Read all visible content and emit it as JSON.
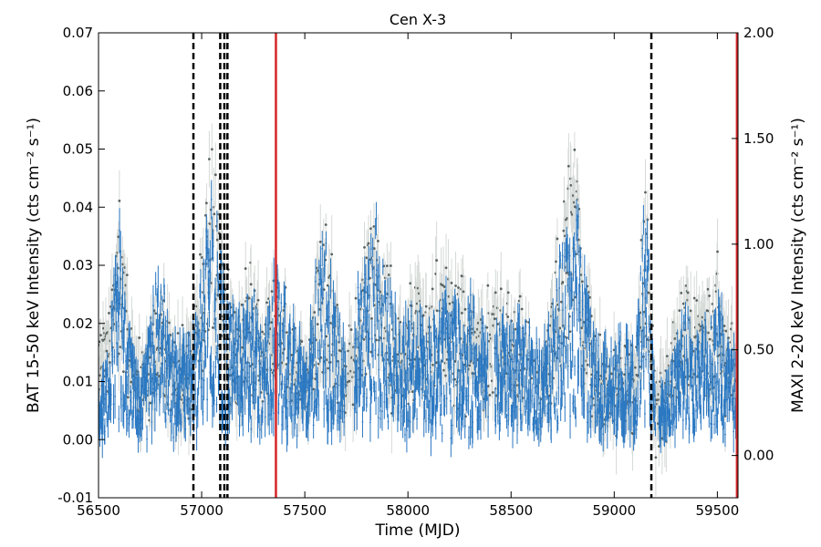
{
  "chart_data": {
    "type": "scatter",
    "title": "Cen X-3",
    "xlabel": "Time (MJD)",
    "ylabel_left": "BAT 15-50 keV Intensity (cts cm⁻² s⁻¹)",
    "ylabel_right": "MAXI 2-20 keV Intensity (cts cm⁻² s⁻¹)",
    "xlim": [
      56500,
      59600
    ],
    "ylim_left": [
      -0.01,
      0.07
    ],
    "ylim_right": [
      -0.2,
      2.0
    ],
    "x_ticks": [
      "56500",
      "57000",
      "57500",
      "58000",
      "58500",
      "59000",
      "59500"
    ],
    "y_ticks_left": [
      "-0.01",
      "0.00",
      "0.01",
      "0.02",
      "0.03",
      "0.04",
      "0.05",
      "0.06",
      "0.07"
    ],
    "y_ticks_right": [
      "0.00",
      "0.50",
      "1.00",
      "1.50",
      "2.00"
    ],
    "grid": false,
    "colors": {
      "bat": "#2b78c2",
      "maxi_point": "#5a6462",
      "maxi_error": "#d4d9d6",
      "dashed_line": "#000000",
      "solid_line": "#d62728"
    },
    "vertical_lines_dashed": [
      56960,
      57090,
      57110,
      57125,
      59180
    ],
    "vertical_lines_solid": [
      57360,
      59595
    ],
    "series": [
      {
        "instrument": "BAT",
        "axis": "left",
        "x_start": 56500,
        "x_end": 59600,
        "envelope": [
          [
            56500,
            0.004
          ],
          [
            56550,
            0.01
          ],
          [
            56600,
            0.025
          ],
          [
            56650,
            0.012
          ],
          [
            56700,
            0.006
          ],
          [
            56750,
            0.015
          ],
          [
            56800,
            0.02
          ],
          [
            56850,
            0.012
          ],
          [
            56900,
            0.01
          ],
          [
            56950,
            0.013
          ],
          [
            57000,
            0.018
          ],
          [
            57050,
            0.03
          ],
          [
            57100,
            0.02
          ],
          [
            57150,
            0.015
          ],
          [
            57200,
            0.014
          ],
          [
            57250,
            0.016
          ],
          [
            57300,
            0.012
          ],
          [
            57350,
            0.02
          ],
          [
            57400,
            0.016
          ],
          [
            57450,
            0.012
          ],
          [
            57500,
            0.01
          ],
          [
            57550,
            0.018
          ],
          [
            57600,
            0.025
          ],
          [
            57650,
            0.015
          ],
          [
            57700,
            0.01
          ],
          [
            57750,
            0.016
          ],
          [
            57800,
            0.02
          ],
          [
            57850,
            0.026
          ],
          [
            57900,
            0.018
          ],
          [
            57950,
            0.014
          ],
          [
            58000,
            0.014
          ],
          [
            58050,
            0.014
          ],
          [
            58100,
            0.012
          ],
          [
            58150,
            0.015
          ],
          [
            58200,
            0.016
          ],
          [
            58250,
            0.015
          ],
          [
            58300,
            0.016
          ],
          [
            58350,
            0.012
          ],
          [
            58400,
            0.015
          ],
          [
            58450,
            0.014
          ],
          [
            58500,
            0.013
          ],
          [
            58550,
            0.015
          ],
          [
            58600,
            0.012
          ],
          [
            58650,
            0.009
          ],
          [
            58700,
            0.016
          ],
          [
            58750,
            0.022
          ],
          [
            58800,
            0.03
          ],
          [
            58850,
            0.02
          ],
          [
            58900,
            0.012
          ],
          [
            58950,
            0.01
          ],
          [
            59000,
            0.01
          ],
          [
            59050,
            0.012
          ],
          [
            59100,
            0.01
          ],
          [
            59150,
            0.03
          ],
          [
            59200,
            0.004
          ],
          [
            59250,
            0.006
          ],
          [
            59300,
            0.012
          ],
          [
            59350,
            0.016
          ],
          [
            59400,
            0.012
          ],
          [
            59450,
            0.014
          ],
          [
            59500,
            0.016
          ],
          [
            59550,
            0.012
          ],
          [
            59600,
            0.01
          ]
        ]
      },
      {
        "instrument": "MAXI",
        "axis": "right",
        "x_start": 56500,
        "x_end": 59600,
        "envelope": [
          [
            56500,
            0.45
          ],
          [
            56550,
            0.5
          ],
          [
            56600,
            0.9
          ],
          [
            56650,
            0.5
          ],
          [
            56700,
            0.3
          ],
          [
            56750,
            0.45
          ],
          [
            56800,
            0.55
          ],
          [
            56850,
            0.4
          ],
          [
            56900,
            0.35
          ],
          [
            56950,
            0.4
          ],
          [
            57000,
            0.7
          ],
          [
            57050,
            1.0
          ],
          [
            57100,
            0.7
          ],
          [
            57150,
            0.5
          ],
          [
            57200,
            0.55
          ],
          [
            57250,
            0.6
          ],
          [
            57300,
            0.45
          ],
          [
            57350,
            0.6
          ],
          [
            57400,
            0.55
          ],
          [
            57450,
            0.4
          ],
          [
            57500,
            0.35
          ],
          [
            57550,
            0.6
          ],
          [
            57600,
            0.8
          ],
          [
            57650,
            0.5
          ],
          [
            57700,
            0.3
          ],
          [
            57750,
            0.55
          ],
          [
            57800,
            0.75
          ],
          [
            57850,
            0.85
          ],
          [
            57900,
            0.65
          ],
          [
            57950,
            0.5
          ],
          [
            58000,
            0.5
          ],
          [
            58050,
            0.55
          ],
          [
            58100,
            0.5
          ],
          [
            58150,
            0.6
          ],
          [
            58200,
            0.65
          ],
          [
            58250,
            0.55
          ],
          [
            58300,
            0.6
          ],
          [
            58350,
            0.45
          ],
          [
            58400,
            0.55
          ],
          [
            58450,
            0.5
          ],
          [
            58500,
            0.45
          ],
          [
            58550,
            0.5
          ],
          [
            58600,
            0.4
          ],
          [
            58650,
            0.3
          ],
          [
            58700,
            0.55
          ],
          [
            58750,
            0.8
          ],
          [
            58800,
            1.1
          ],
          [
            58850,
            0.7
          ],
          [
            58900,
            0.4
          ],
          [
            58950,
            0.3
          ],
          [
            59000,
            0.3
          ],
          [
            59050,
            0.35
          ],
          [
            59100,
            0.3
          ],
          [
            59150,
            0.9
          ],
          [
            59200,
            0.2
          ],
          [
            59250,
            0.25
          ],
          [
            59300,
            0.45
          ],
          [
            59350,
            0.6
          ],
          [
            59400,
            0.5
          ],
          [
            59450,
            0.55
          ],
          [
            59500,
            0.6
          ],
          [
            59550,
            0.45
          ],
          [
            59600,
            0.4
          ]
        ]
      }
    ]
  }
}
